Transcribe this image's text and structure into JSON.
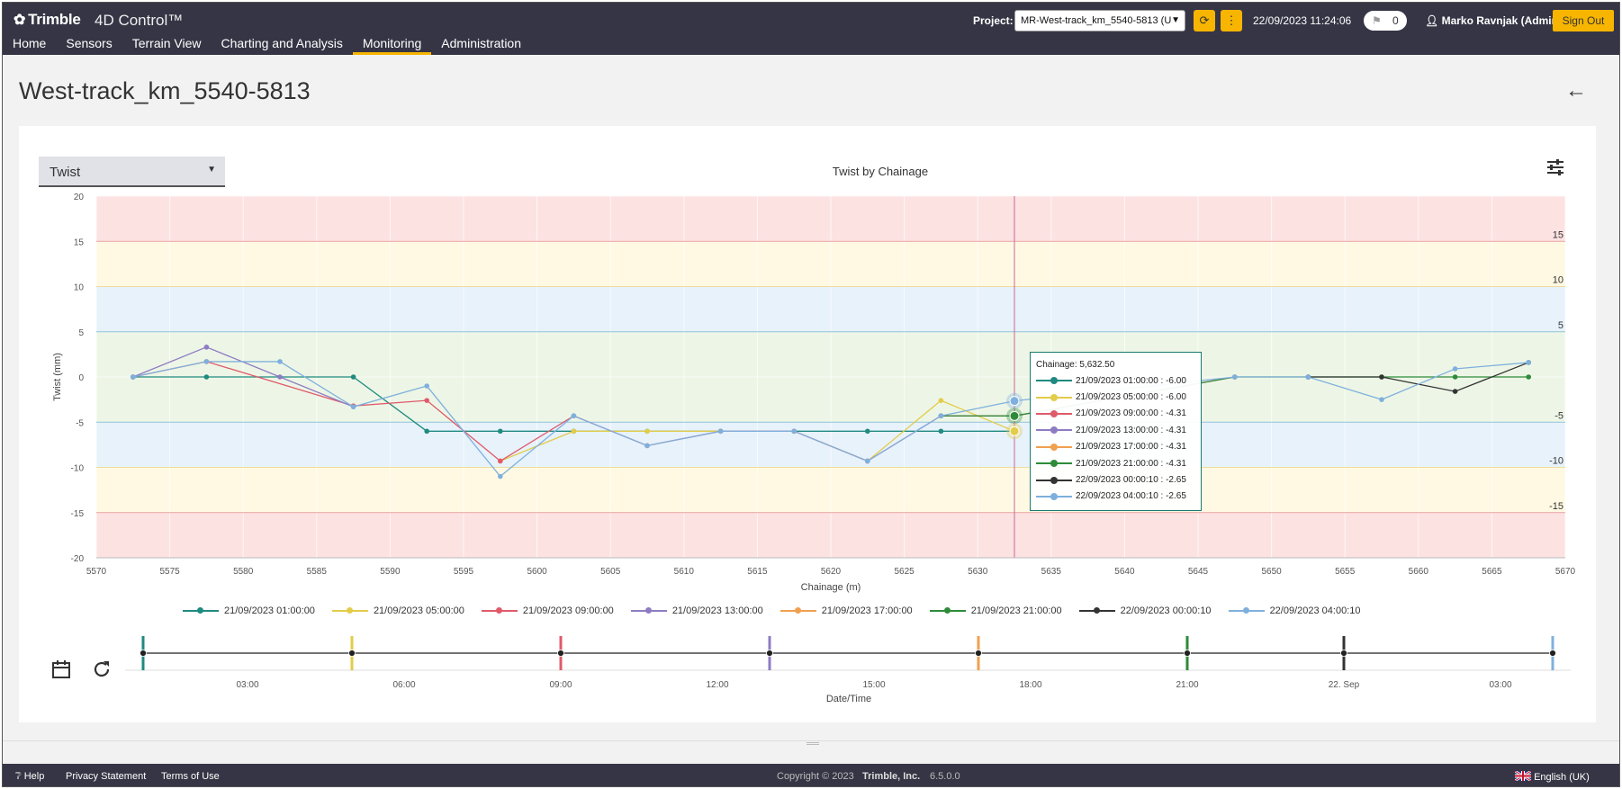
{
  "header": {
    "brand": "Trimble",
    "product": "4D Control™",
    "project_label": "Project:",
    "project_value": "MR-West-track_km_5540-5813 (U",
    "datetime": "22/09/2023 11:24:06",
    "flag_count": "0",
    "user": "Marko Ravnjak (Admin)",
    "sign_out": "Sign Out"
  },
  "nav": [
    "Home",
    "Sensors",
    "Terrain View",
    "Charting and Analysis",
    "Monitoring",
    "Administration"
  ],
  "nav_active": "Monitoring",
  "page": {
    "title": "West-track_km_5540-5813"
  },
  "selector": {
    "value": "Twist"
  },
  "chart_data": {
    "type": "line",
    "title": "Twist by Chainage",
    "xlabel": "Chainage (m)",
    "ylabel": "Twist (mm)",
    "xlim": [
      5570,
      5670
    ],
    "ylim": [
      -20,
      20
    ],
    "x_ticks": [
      5570,
      5575,
      5580,
      5585,
      5590,
      5595,
      5600,
      5605,
      5610,
      5615,
      5620,
      5625,
      5630,
      5635,
      5640,
      5645,
      5650,
      5655,
      5660,
      5665,
      5670
    ],
    "y_ticks": [
      20,
      15,
      10,
      5,
      0,
      -5,
      -10,
      -15,
      -20
    ],
    "threshold_labels": [
      15,
      10,
      5,
      -5,
      -10,
      -15
    ],
    "bands": [
      {
        "from": 15,
        "to": 20,
        "color": "#fde2e2"
      },
      {
        "from": 10,
        "to": 15,
        "color": "#fff9e3"
      },
      {
        "from": 5,
        "to": 10,
        "color": "#e7f2fb"
      },
      {
        "from": -5,
        "to": 5,
        "color": "#edf6e6"
      },
      {
        "from": -10,
        "to": -5,
        "color": "#e7f2fb"
      },
      {
        "from": -15,
        "to": -10,
        "color": "#fff9e3"
      },
      {
        "from": -20,
        "to": -15,
        "color": "#fde2e2"
      }
    ],
    "band_lines": [
      {
        "y": 15,
        "color": "#e8a0a0"
      },
      {
        "y": 10,
        "color": "#eedc9a"
      },
      {
        "y": 5,
        "color": "#8fc0d8"
      },
      {
        "y": -5,
        "color": "#8fc0d8"
      },
      {
        "y": -10,
        "color": "#eedc9a"
      },
      {
        "y": -15,
        "color": "#e8a0a0"
      }
    ],
    "crosshair_x": 5632.5,
    "series": [
      {
        "name": "21/09/2023 01:00:00",
        "color": "#1f8a80",
        "x": [
          5572.5,
          5577.5,
          5587.5,
          5592.5,
          5597.5,
          5602.5,
          5607.5,
          5612.5,
          5617.5,
          5622.5,
          5627.5,
          5632.5
        ],
        "y": [
          0,
          0,
          0,
          -6,
          -6,
          -6,
          -6,
          -6,
          -6,
          -6,
          -6,
          -6
        ]
      },
      {
        "name": "21/09/2023 05:00:00",
        "color": "#e3cc4a",
        "x": [
          5597.5,
          5602.5,
          5607.5,
          5612.5,
          5617.5,
          5622.5,
          5627.5,
          5632.5
        ],
        "y": [
          -9.3,
          -6,
          -6,
          -6,
          -6,
          -9.3,
          -2.6,
          -6
        ]
      },
      {
        "name": "21/09/2023 09:00:00",
        "color": "#e05a6a",
        "x": [
          5572.5,
          5577.5,
          5587.5,
          5592.5,
          5597.5,
          5602.5,
          5607.5,
          5612.5,
          5617.5,
          5622.5,
          5627.5,
          5632.5,
          5647.5
        ],
        "y": [
          0,
          1.7,
          -3.2,
          -2.6,
          -9.3,
          -4.3,
          -7.6,
          -6,
          -6,
          -9.3,
          -4.3,
          -4.31,
          0
        ]
      },
      {
        "name": "21/09/2023 13:00:00",
        "color": "#8e7cc3",
        "x": [
          5572.5,
          5577.5,
          5582.5,
          5587.5
        ],
        "y": [
          0,
          3.3,
          0,
          -3.3
        ]
      },
      {
        "name": "21/09/2023 17:00:00",
        "color": "#f0a050",
        "x": [],
        "y": []
      },
      {
        "name": "21/09/2023 21:00:00",
        "color": "#2e8b3a",
        "x": [
          5627.5,
          5632.5,
          5647.5,
          5652.5,
          5657.5,
          5662.5,
          5667.5
        ],
        "y": [
          -4.3,
          -4.31,
          0,
          0,
          0,
          0,
          0
        ]
      },
      {
        "name": "22/09/2023 00:00:10",
        "color": "#333333",
        "x": [
          5652.5,
          5657.5,
          5662.5,
          5667.5
        ],
        "y": [
          0,
          0,
          -1.6,
          1.6
        ]
      },
      {
        "name": "22/09/2023 04:00:10",
        "color": "#7fb0dd",
        "x": [
          5572.5,
          5577.5,
          5582.5,
          5587.5,
          5592.5,
          5597.5,
          5602.5,
          5607.5,
          5612.5,
          5617.5,
          5622.5,
          5627.5,
          5632.5,
          5647.5,
          5652.5,
          5657.5,
          5662.5,
          5667.5
        ],
        "y": [
          0,
          1.7,
          1.7,
          -3.3,
          -1,
          -11,
          -4.3,
          -7.6,
          -6,
          -6,
          -9.3,
          -4.3,
          -2.65,
          0,
          0,
          -2.5,
          0.9,
          1.6
        ]
      }
    ]
  },
  "tooltip": {
    "title": "Chainage: 5,632.50",
    "rows": [
      {
        "label": "21/09/2023 01:00:00 : -6.00",
        "color": "#1f8a80"
      },
      {
        "label": "21/09/2023 05:00:00 : -6.00",
        "color": "#e3cc4a"
      },
      {
        "label": "21/09/2023 09:00:00 : -4.31",
        "color": "#e05a6a"
      },
      {
        "label": "21/09/2023 13:00:00 : -4.31",
        "color": "#8e7cc3"
      },
      {
        "label": "21/09/2023 17:00:00 : -4.31",
        "color": "#f0a050"
      },
      {
        "label": "21/09/2023 21:00:00 : -4.31",
        "color": "#2e8b3a"
      },
      {
        "label": "22/09/2023 00:00:10 : -2.65",
        "color": "#333333"
      },
      {
        "label": "22/09/2023 04:00:10 : -2.65",
        "color": "#7fb0dd"
      }
    ]
  },
  "timeline": {
    "xlabel": "Date/Time",
    "ticks": [
      "03:00",
      "06:00",
      "09:00",
      "12:00",
      "15:00",
      "18:00",
      "21:00",
      "22. Sep",
      "03:00"
    ],
    "marker_colors": [
      "#1f8a80",
      "#e3cc4a",
      "#e05a6a",
      "#8e7cc3",
      "#f0a050",
      "#2e8b3a",
      "#333333",
      "#7fb0dd"
    ]
  },
  "footer": {
    "help": "Help",
    "privacy": "Privacy Statement",
    "terms": "Terms of Use",
    "copyright": "Copyright © 2023",
    "company": "Trimble, Inc.",
    "version": "6.5.0.0",
    "language": "English (UK)"
  },
  "icons": {
    "refresh": "refresh-icon",
    "more": "more-vertical-icon",
    "flag": "flag-icon",
    "user": "user-icon",
    "back": "arrow-left-icon",
    "settings": "tune-icon",
    "calendar": "calendar-icon",
    "help": "help-icon",
    "language": "uk-flag-icon"
  }
}
